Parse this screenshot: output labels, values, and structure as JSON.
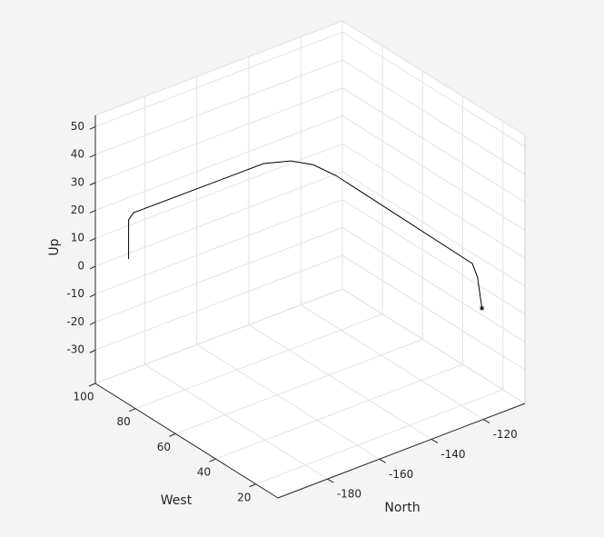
{
  "chart_data": {
    "type": "line3d",
    "xlabel": "North",
    "ylabel": "West",
    "zlabel": "Up",
    "x": [
      -188.3,
      -188.3,
      -186.6,
      -141.0,
      -133.5,
      -129.6,
      -128.3,
      -118.6,
      -117.3,
      -116.3
    ],
    "y": [
      97.3,
      97.3,
      97.1,
      91.3,
      87.5,
      81.4,
      71.7,
      16.3,
      15.4,
      14.5
    ],
    "z": [
      0,
      14,
      16,
      20,
      20,
      20,
      20,
      10,
      5,
      -6
    ],
    "color": "#000000",
    "xlim": [
      -199,
      -104
    ],
    "ylim": [
      9,
      100
    ],
    "zlim": [
      -42,
      54
    ],
    "xticks": [
      -180,
      -160,
      -140,
      -120
    ],
    "yticks": [
      20,
      40,
      60,
      80,
      100
    ],
    "zticks": [
      -30,
      -20,
      -10,
      0,
      10,
      20,
      30,
      40,
      50
    ],
    "grid": true
  }
}
